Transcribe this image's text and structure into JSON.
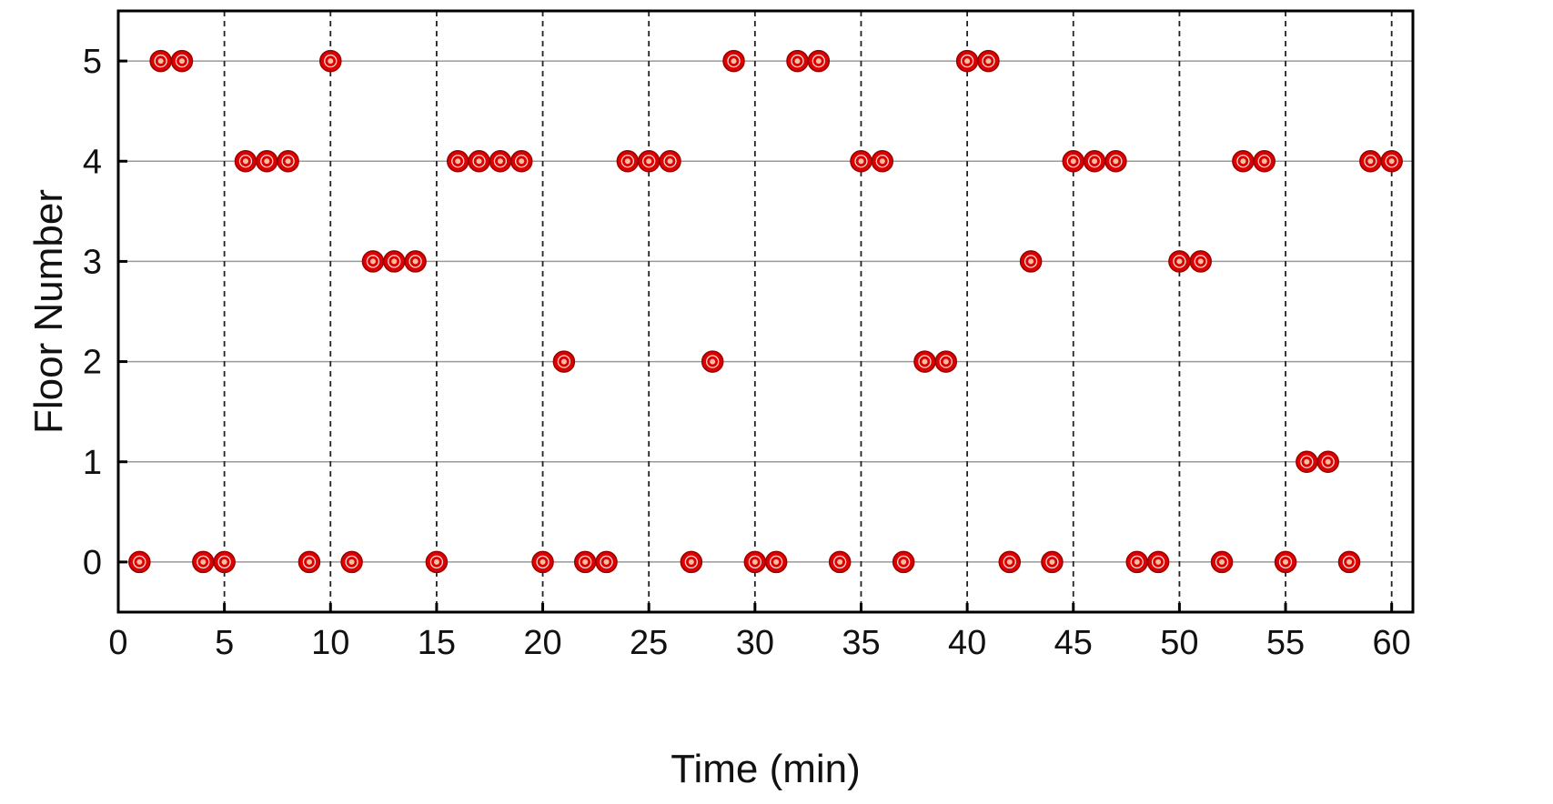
{
  "chart_data": {
    "type": "scatter",
    "title": "",
    "xlabel": "Time (min)",
    "ylabel": "Floor Number",
    "xlim": [
      0,
      61
    ],
    "ylim": [
      -0.5,
      5.5
    ],
    "x_ticks": [
      0,
      5,
      10,
      15,
      20,
      25,
      30,
      35,
      40,
      45,
      50,
      55,
      60
    ],
    "y_ticks": [
      0,
      1,
      2,
      3,
      4,
      5
    ],
    "x_grid": "dashed vertical lines at each x tick",
    "y_grid": "solid horizontal lines at each y tick",
    "marker": {
      "fill": "#dd0000",
      "center": "#f5c0a0",
      "outline": "#990000"
    },
    "series": [
      {
        "x": [
          1,
          2,
          3,
          4,
          5,
          6,
          7,
          8,
          9,
          10,
          11,
          12,
          13,
          14,
          15,
          16,
          17,
          18,
          19,
          20,
          21,
          22,
          23,
          24,
          25,
          26,
          27,
          28,
          29,
          30,
          31,
          32,
          33,
          34,
          35,
          36,
          37,
          38,
          39,
          40,
          41,
          42,
          43,
          44,
          45,
          46,
          47,
          48,
          49,
          50,
          51,
          52,
          53,
          54,
          55,
          56,
          57,
          58,
          59,
          60
        ],
        "y": [
          0,
          5,
          5,
          0,
          0,
          4,
          4,
          4,
          0,
          5,
          0,
          3,
          3,
          3,
          0,
          4,
          4,
          4,
          4,
          0,
          2,
          0,
          0,
          4,
          4,
          4,
          0,
          2,
          5,
          0,
          0,
          5,
          5,
          0,
          4,
          4,
          0,
          2,
          2,
          5,
          5,
          0,
          3,
          0,
          4,
          4,
          4,
          0,
          0,
          3,
          3,
          0,
          4,
          4,
          0,
          1,
          1,
          0,
          4,
          4
        ]
      }
    ]
  }
}
